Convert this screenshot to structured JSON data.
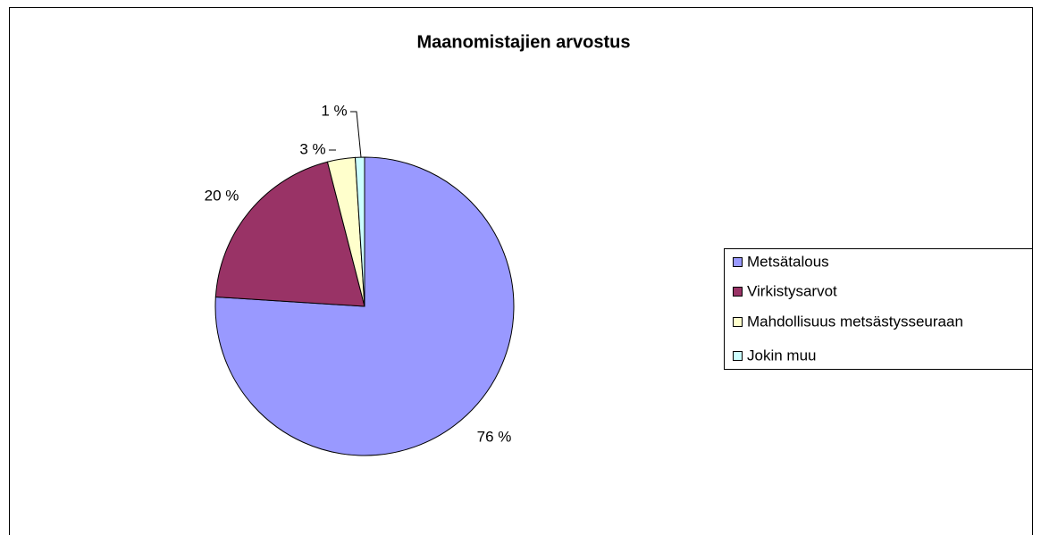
{
  "chart_data": {
    "type": "pie",
    "title": "Maanomistajien arvostus",
    "categories": [
      "Metsätalous",
      "Virkistysarvot",
      "Mahdollisuus metsästysseuraan",
      "Jokin muu"
    ],
    "values": [
      76,
      20,
      3,
      1
    ],
    "value_labels": [
      "76 %",
      "20 %",
      "3 %",
      "1 %"
    ],
    "colors": [
      "#9999ff",
      "#993366",
      "#ffffcc",
      "#ccffff"
    ],
    "legend": "right"
  }
}
